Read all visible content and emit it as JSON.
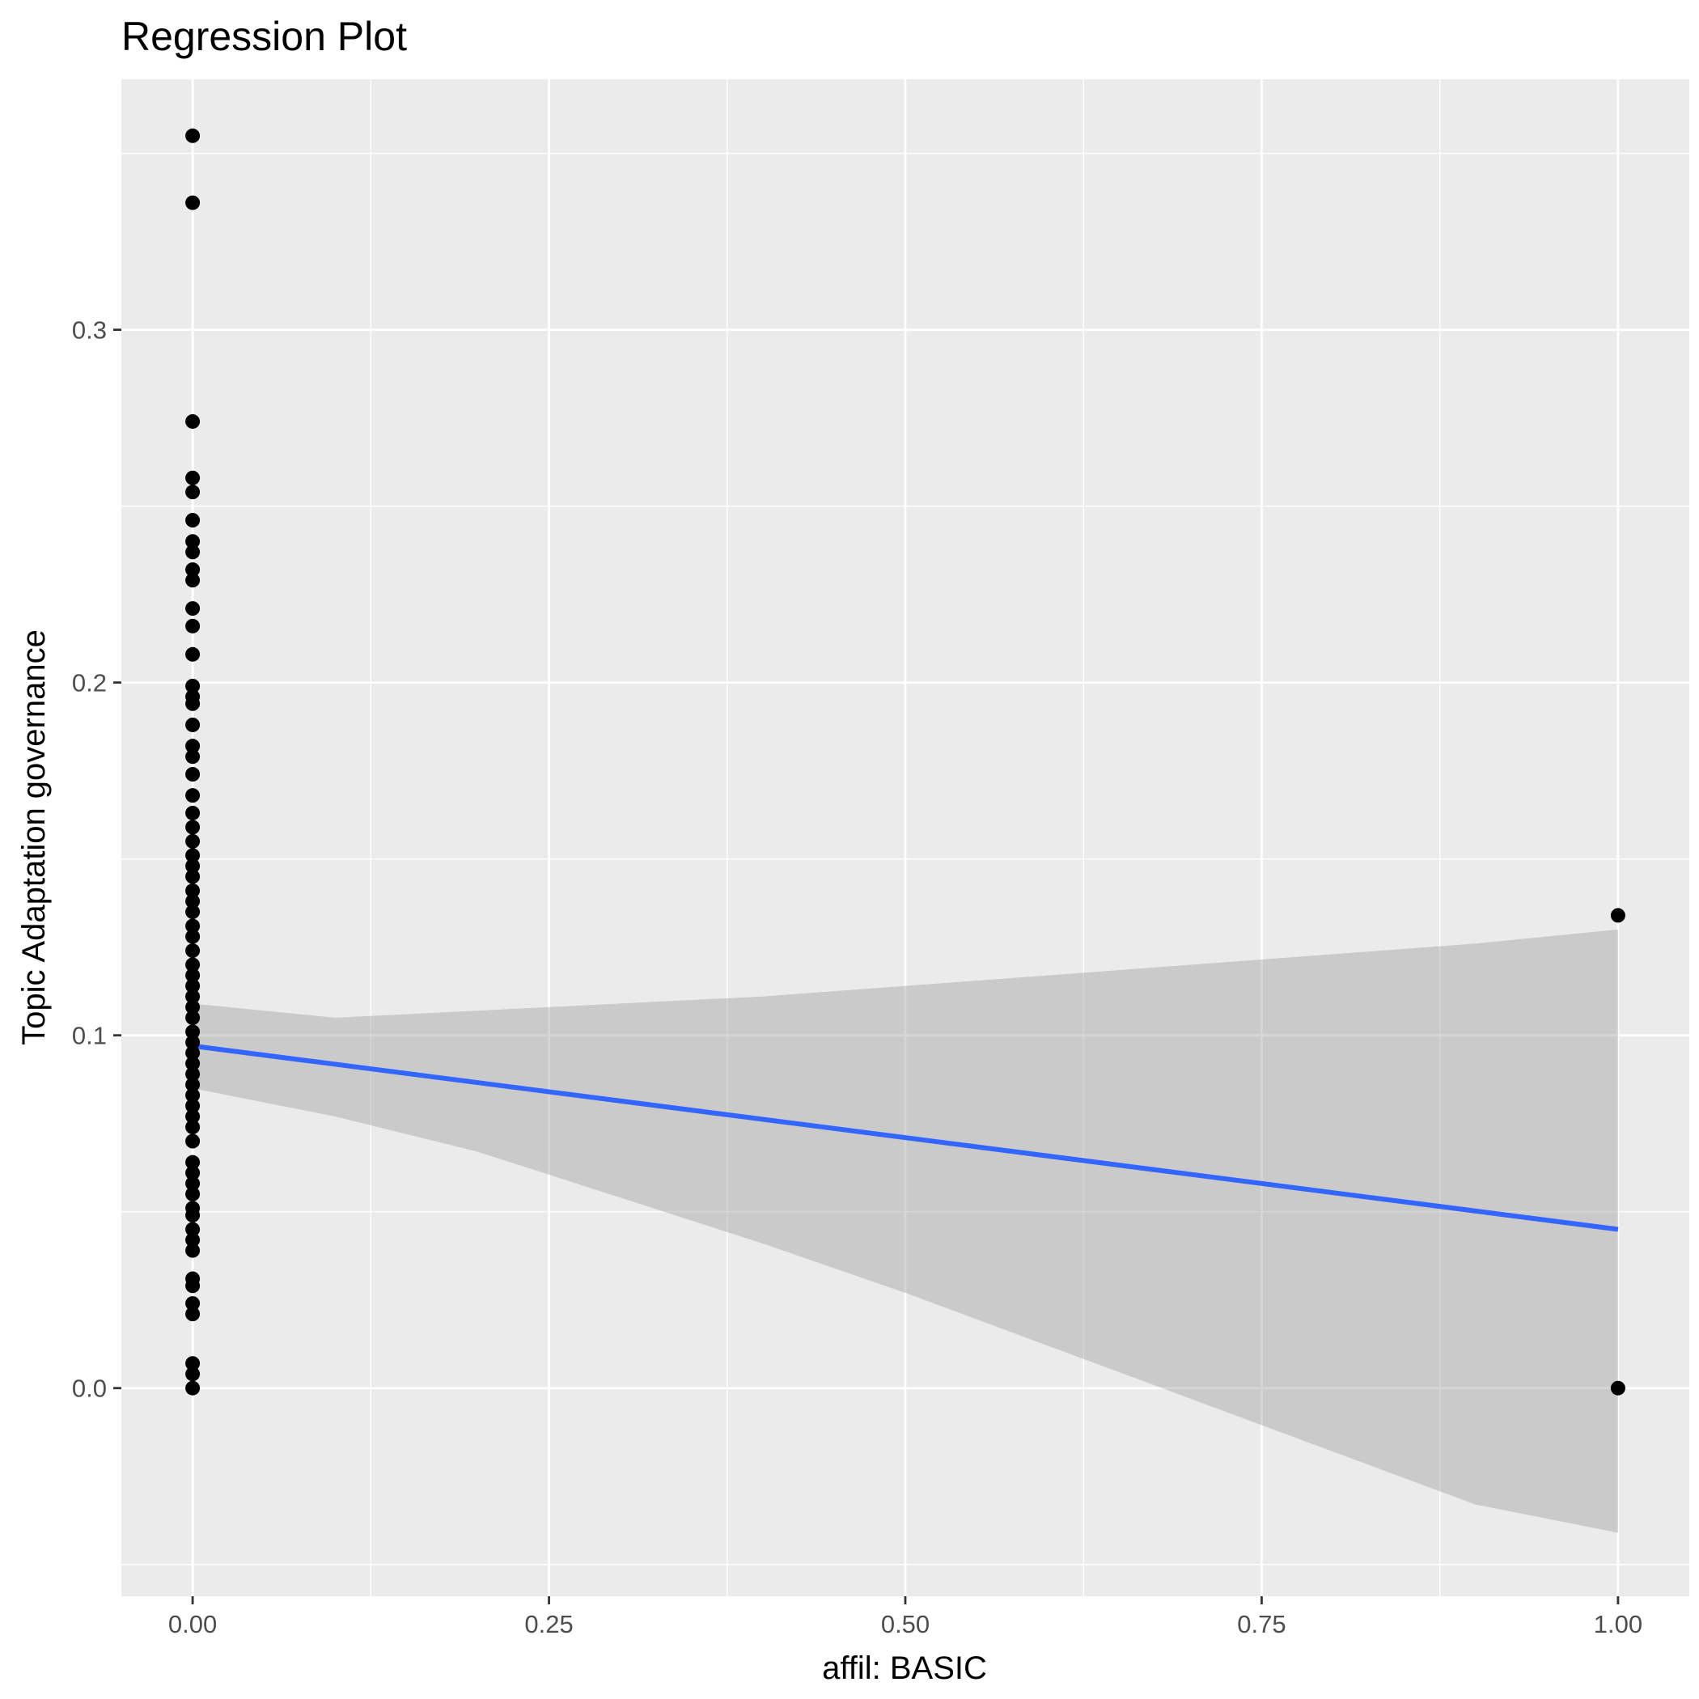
{
  "chart_data": {
    "type": "scatter",
    "title": "Regression Plot",
    "xlabel": "affil: BASIC",
    "ylabel": "Topic Adaptation governance",
    "xlim": [
      -0.05,
      1.05
    ],
    "ylim": [
      -0.059,
      0.371
    ],
    "x_ticks": [
      0.0,
      0.25,
      0.5,
      0.75,
      1.0
    ],
    "x_tick_labels": [
      "0.00",
      "0.25",
      "0.50",
      "0.75",
      "1.00"
    ],
    "y_ticks": [
      0.0,
      0.1,
      0.2,
      0.3
    ],
    "y_tick_labels": [
      "0.0",
      "0.1",
      "0.2",
      "0.3"
    ],
    "grid": true,
    "legend": "none",
    "colors": {
      "panel_background": "#ebebeb",
      "grid": "#ffffff",
      "points": "#000000",
      "regression_line": "#3366ff",
      "confidence_band": "#999999"
    },
    "points": [
      {
        "x": 0,
        "y": 0.355
      },
      {
        "x": 0,
        "y": 0.336
      },
      {
        "x": 0,
        "y": 0.274
      },
      {
        "x": 0,
        "y": 0.258
      },
      {
        "x": 0,
        "y": 0.254
      },
      {
        "x": 0,
        "y": 0.246
      },
      {
        "x": 0,
        "y": 0.24
      },
      {
        "x": 0,
        "y": 0.237
      },
      {
        "x": 0,
        "y": 0.232
      },
      {
        "x": 0,
        "y": 0.229
      },
      {
        "x": 0,
        "y": 0.221
      },
      {
        "x": 0,
        "y": 0.216
      },
      {
        "x": 0,
        "y": 0.208
      },
      {
        "x": 0,
        "y": 0.199
      },
      {
        "x": 0,
        "y": 0.196
      },
      {
        "x": 0,
        "y": 0.194
      },
      {
        "x": 0,
        "y": 0.188
      },
      {
        "x": 0,
        "y": 0.182
      },
      {
        "x": 0,
        "y": 0.179
      },
      {
        "x": 0,
        "y": 0.174
      },
      {
        "x": 0,
        "y": 0.168
      },
      {
        "x": 0,
        "y": 0.163
      },
      {
        "x": 0,
        "y": 0.159
      },
      {
        "x": 0,
        "y": 0.155
      },
      {
        "x": 0,
        "y": 0.151
      },
      {
        "x": 0,
        "y": 0.148
      },
      {
        "x": 0,
        "y": 0.145
      },
      {
        "x": 0,
        "y": 0.141
      },
      {
        "x": 0,
        "y": 0.138
      },
      {
        "x": 0,
        "y": 0.135
      },
      {
        "x": 0,
        "y": 0.131
      },
      {
        "x": 0,
        "y": 0.128
      },
      {
        "x": 0,
        "y": 0.124
      },
      {
        "x": 0,
        "y": 0.12
      },
      {
        "x": 0,
        "y": 0.117
      },
      {
        "x": 0,
        "y": 0.114
      },
      {
        "x": 0,
        "y": 0.111
      },
      {
        "x": 0,
        "y": 0.108
      },
      {
        "x": 0,
        "y": 0.105
      },
      {
        "x": 0,
        "y": 0.101
      },
      {
        "x": 0,
        "y": 0.098
      },
      {
        "x": 0,
        "y": 0.095
      },
      {
        "x": 0,
        "y": 0.092
      },
      {
        "x": 0,
        "y": 0.089
      },
      {
        "x": 0,
        "y": 0.086
      },
      {
        "x": 0,
        "y": 0.083
      },
      {
        "x": 0,
        "y": 0.08
      },
      {
        "x": 0,
        "y": 0.077
      },
      {
        "x": 0,
        "y": 0.074
      },
      {
        "x": 0,
        "y": 0.07
      },
      {
        "x": 0,
        "y": 0.064
      },
      {
        "x": 0,
        "y": 0.061
      },
      {
        "x": 0,
        "y": 0.058
      },
      {
        "x": 0,
        "y": 0.055
      },
      {
        "x": 0,
        "y": 0.051
      },
      {
        "x": 0,
        "y": 0.049
      },
      {
        "x": 0,
        "y": 0.045
      },
      {
        "x": 0,
        "y": 0.042
      },
      {
        "x": 0,
        "y": 0.039
      },
      {
        "x": 0,
        "y": 0.031
      },
      {
        "x": 0,
        "y": 0.029
      },
      {
        "x": 0,
        "y": 0.024
      },
      {
        "x": 0,
        "y": 0.021
      },
      {
        "x": 0,
        "y": 0.007
      },
      {
        "x": 0,
        "y": 0.004
      },
      {
        "x": 0,
        "y": 0.0
      },
      {
        "x": 1,
        "y": 0.134
      },
      {
        "x": 1,
        "y": 0.0
      }
    ],
    "regression": {
      "x": [
        0,
        1
      ],
      "y": [
        0.097,
        0.045
      ]
    },
    "confidence_band": {
      "x": [
        0,
        0.1,
        0.2,
        0.3,
        0.4,
        0.5,
        0.6,
        0.7,
        0.8,
        0.9,
        1.0
      ],
      "upper": [
        0.109,
        0.105,
        0.107,
        0.109,
        0.111,
        0.114,
        0.117,
        0.12,
        0.123,
        0.126,
        0.13
      ],
      "lower": [
        0.085,
        0.077,
        0.067,
        0.054,
        0.041,
        0.027,
        0.012,
        -0.003,
        -0.018,
        -0.033,
        -0.041
      ]
    }
  }
}
